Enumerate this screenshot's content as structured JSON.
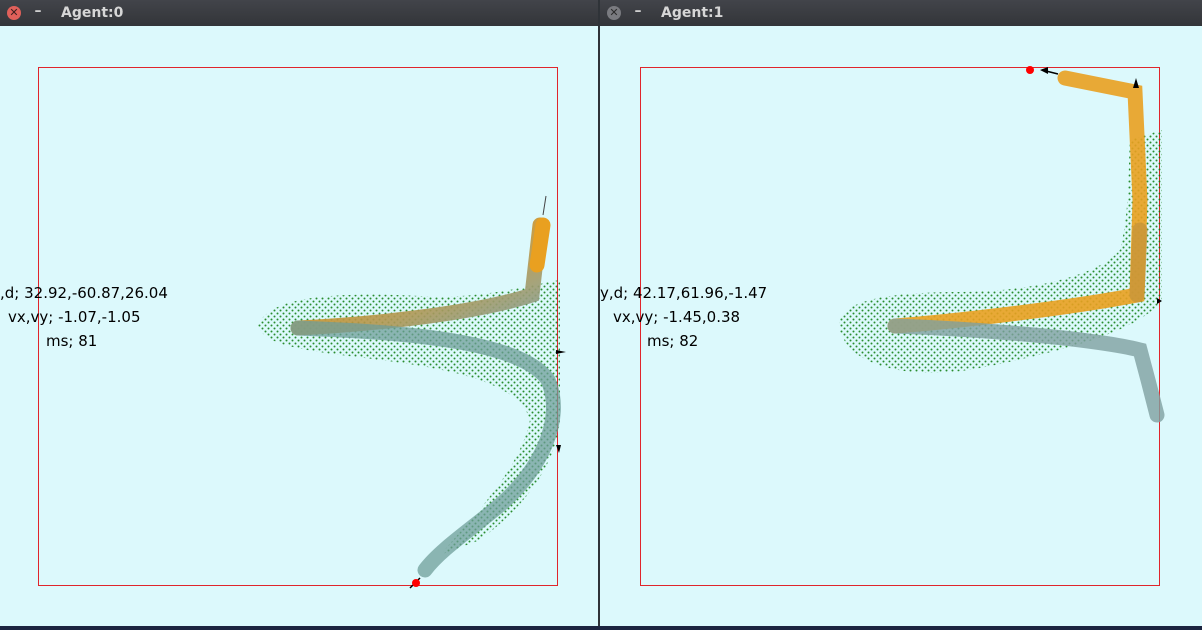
{
  "windows": [
    {
      "title": "Agent:0",
      "close_icon": "close-icon",
      "minimize_icon": "minimize-icon",
      "readouts": {
        "line1": ",d; 32.92,-60.87,26.04",
        "line2": "vx,vy; -1.07,-1.05",
        "line3": "ms; 81"
      }
    },
    {
      "title": "Agent:1",
      "close_icon": "close-icon",
      "minimize_icon": "minimize-icon",
      "readouts": {
        "line1": "y,d; 42.17,61.96,-1.47",
        "line2": "vx,vy; -1.45,0.38",
        "line3": "ms; 82"
      }
    }
  ],
  "colors": {
    "background": "#dcf9fc",
    "boundary": "#e0252b",
    "path_start": "#e9a020",
    "path_end": "#5aa2b3",
    "samples": "#0a7a0a",
    "goal": "#ff0000"
  }
}
